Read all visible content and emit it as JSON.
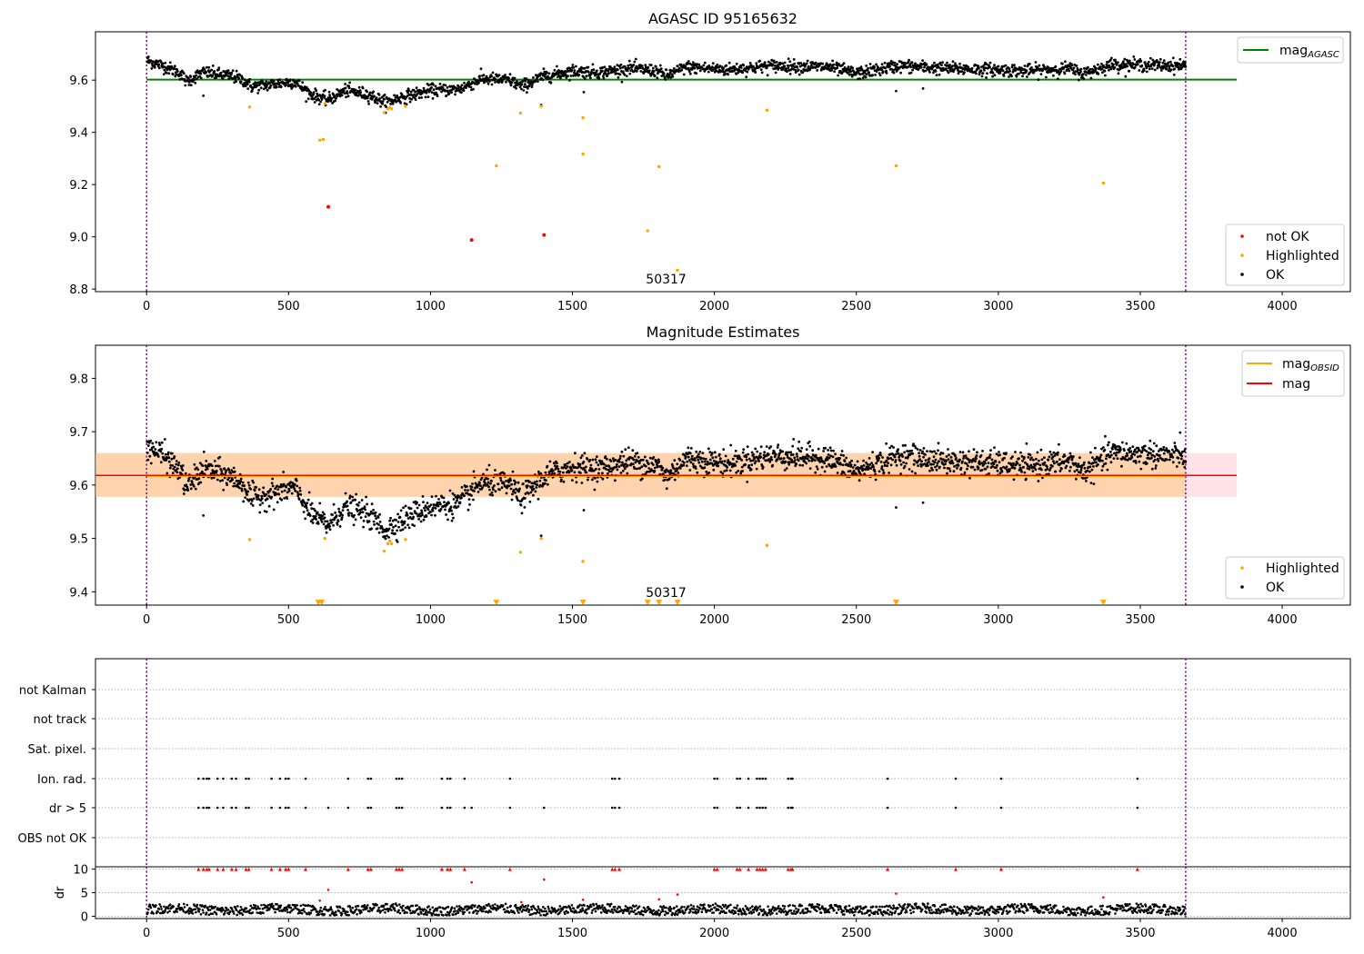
{
  "chart_data": [
    {
      "type": "scatter",
      "title": "AGASC ID 95165632",
      "xlabel": "",
      "ylabel": "",
      "xlim": [
        -180,
        4240
      ],
      "ylim": [
        8.79,
        9.785
      ],
      "xticks": [
        "0",
        "500",
        "1000",
        "1500",
        "2000",
        "2500",
        "3000",
        "3500",
        "4000"
      ],
      "yticks": [
        "8.8",
        "9.0",
        "9.2",
        "9.4",
        "9.6"
      ],
      "legend_position": "upper right and lower right",
      "vlines": [
        0,
        3660
      ],
      "hlines": [
        {
          "name": "mag_AGASC",
          "value": 9.602,
          "color": "#008000"
        }
      ],
      "legend_top": [
        {
          "label": "mag",
          "sub": "AGASC",
          "color": "#008000"
        }
      ],
      "legend_bottom": [
        {
          "label": "not OK",
          "color": "#ff0000"
        },
        {
          "label": "Highlighted",
          "color": "#ffa500"
        },
        {
          "label": "OK",
          "color": "#000000"
        }
      ],
      "annotation": {
        "text": "50317",
        "x": 1830,
        "y": 8.82
      },
      "series": [
        {
          "name": "not OK",
          "color": "#ff0000",
          "points": [
            [
              640,
              9.115
            ],
            [
              1145,
              8.988
            ],
            [
              1400,
              9.007
            ]
          ]
        },
        {
          "name": "Highlighted",
          "color": "#ffa500",
          "points": [
            [
              363,
              9.497
            ],
            [
              610,
              9.37
            ],
            [
              622,
              9.373
            ],
            [
              628,
              9.51
            ],
            [
              837,
              9.476
            ],
            [
              850,
              9.49
            ],
            [
              857,
              9.495
            ],
            [
              863,
              9.49
            ],
            [
              912,
              9.5
            ],
            [
              1232,
              9.272
            ],
            [
              1317,
              9.474
            ],
            [
              1390,
              9.5
            ],
            [
              1537,
              9.456
            ],
            [
              1537,
              9.317
            ],
            [
              1765,
              9.023
            ],
            [
              1805,
              9.269
            ],
            [
              1870,
              8.872
            ],
            [
              2185,
              9.485
            ],
            [
              2640,
              9.272
            ],
            [
              3370,
              9.206
            ]
          ]
        },
        {
          "name": "OK",
          "color": "#000000",
          "generated_from": "trend",
          "trend": [
            [
              0,
              9.675
            ],
            [
              60,
              9.655
            ],
            [
              120,
              9.625
            ],
            [
              140,
              9.595
            ],
            [
              200,
              9.63
            ],
            [
              300,
              9.615
            ],
            [
              340,
              9.6
            ],
            [
              370,
              9.575
            ],
            [
              450,
              9.585
            ],
            [
              520,
              9.595
            ],
            [
              580,
              9.545
            ],
            [
              640,
              9.525
            ],
            [
              700,
              9.56
            ],
            [
              780,
              9.545
            ],
            [
              840,
              9.515
            ],
            [
              900,
              9.535
            ],
            [
              1000,
              9.56
            ],
            [
              1100,
              9.565
            ],
            [
              1180,
              9.605
            ],
            [
              1280,
              9.6
            ],
            [
              1320,
              9.575
            ],
            [
              1400,
              9.615
            ],
            [
              1500,
              9.635
            ],
            [
              1600,
              9.63
            ],
            [
              1700,
              9.645
            ],
            [
              1800,
              9.635
            ],
            [
              1830,
              9.615
            ],
            [
              1900,
              9.65
            ],
            [
              2050,
              9.64
            ],
            [
              2200,
              9.655
            ],
            [
              2400,
              9.65
            ],
            [
              2500,
              9.625
            ],
            [
              2650,
              9.655
            ],
            [
              2800,
              9.645
            ],
            [
              3000,
              9.64
            ],
            [
              3100,
              9.635
            ],
            [
              3250,
              9.645
            ],
            [
              3300,
              9.625
            ],
            [
              3400,
              9.66
            ],
            [
              3660,
              9.655
            ]
          ],
          "outliers": [
            [
              200,
              9.54
            ],
            [
              1540,
              9.554
            ],
            [
              2640,
              9.558
            ],
            [
              2735,
              9.568
            ],
            [
              1390,
              9.505
            ]
          ]
        }
      ]
    },
    {
      "type": "scatter",
      "title": "Magnitude Estimates",
      "xlabel": "",
      "ylabel": "",
      "xlim": [
        -180,
        4240
      ],
      "ylim": [
        9.375,
        9.862
      ],
      "xticks": [
        "0",
        "500",
        "1000",
        "1500",
        "2000",
        "2500",
        "3000",
        "3500",
        "4000"
      ],
      "yticks": [
        "9.4",
        "9.5",
        "9.6",
        "9.7",
        "9.8"
      ],
      "legend_position": "upper right and lower right",
      "vlines": [
        0,
        3660
      ],
      "hlines": [
        {
          "name": "mag_OBSID",
          "value": 9.617,
          "color": "#ffa500",
          "band": [
            9.578,
            9.66
          ]
        },
        {
          "name": "mag",
          "value": 9.618,
          "color": "#ff0000",
          "band": [
            9.578,
            9.66
          ]
        }
      ],
      "legend_top": [
        {
          "label": "mag",
          "sub": "OBSID",
          "color": "#ffa500"
        },
        {
          "label": "mag",
          "sub": "",
          "color": "#ff0000"
        }
      ],
      "legend_bottom": [
        {
          "label": "Highlighted",
          "color": "#ffa500"
        },
        {
          "label": "OK",
          "color": "#000000"
        }
      ],
      "annotation": {
        "text": "50317",
        "x": 1830,
        "y": 9.385
      },
      "series": [
        {
          "name": "Highlighted",
          "color": "#ffa500",
          "points": [
            [
              363,
              9.498
            ],
            [
              628,
              9.5
            ],
            [
              837,
              9.476
            ],
            [
              850,
              9.49
            ],
            [
              857,
              9.495
            ],
            [
              863,
              9.49
            ],
            [
              912,
              9.498
            ],
            [
              1317,
              9.474
            ],
            [
              1390,
              9.5
            ],
            [
              1537,
              9.457
            ],
            [
              2185,
              9.487
            ]
          ]
        },
        {
          "name": "Highlighted (below range)",
          "color": "#ffa500",
          "marker": "triangle-down",
          "points": [
            [
              605,
              9.38
            ],
            [
              617,
              9.38
            ],
            [
              1232,
              9.38
            ],
            [
              1537,
              9.38
            ],
            [
              1765,
              9.38
            ],
            [
              1805,
              9.38
            ],
            [
              1870,
              9.38
            ],
            [
              2640,
              9.38
            ],
            [
              3370,
              9.38
            ]
          ]
        },
        {
          "name": "OK",
          "color": "#000000",
          "generated_from": "trend",
          "trend": [
            [
              0,
              9.675
            ],
            [
              60,
              9.655
            ],
            [
              120,
              9.625
            ],
            [
              140,
              9.595
            ],
            [
              200,
              9.63
            ],
            [
              300,
              9.615
            ],
            [
              340,
              9.6
            ],
            [
              370,
              9.575
            ],
            [
              450,
              9.585
            ],
            [
              520,
              9.595
            ],
            [
              580,
              9.545
            ],
            [
              640,
              9.525
            ],
            [
              700,
              9.56
            ],
            [
              780,
              9.545
            ],
            [
              840,
              9.515
            ],
            [
              900,
              9.535
            ],
            [
              1000,
              9.56
            ],
            [
              1100,
              9.565
            ],
            [
              1180,
              9.605
            ],
            [
              1280,
              9.6
            ],
            [
              1320,
              9.575
            ],
            [
              1400,
              9.615
            ],
            [
              1500,
              9.635
            ],
            [
              1600,
              9.63
            ],
            [
              1700,
              9.645
            ],
            [
              1800,
              9.635
            ],
            [
              1830,
              9.615
            ],
            [
              1900,
              9.65
            ],
            [
              2050,
              9.64
            ],
            [
              2200,
              9.655
            ],
            [
              2400,
              9.65
            ],
            [
              2500,
              9.625
            ],
            [
              2650,
              9.655
            ],
            [
              2800,
              9.645
            ],
            [
              3000,
              9.64
            ],
            [
              3100,
              9.635
            ],
            [
              3250,
              9.645
            ],
            [
              3300,
              9.625
            ],
            [
              3400,
              9.66
            ],
            [
              3660,
              9.655
            ]
          ],
          "outliers": [
            [
              200,
              9.543
            ],
            [
              1540,
              9.553
            ],
            [
              2640,
              9.558
            ],
            [
              2735,
              9.567
            ],
            [
              1390,
              9.505
            ]
          ]
        }
      ]
    },
    {
      "type": "scatter",
      "title": "",
      "xlabel": "",
      "ylabel": "",
      "xlim": [
        -180,
        4240
      ],
      "categories": [
        "not Kalman",
        "not track",
        "Sat. pixel.",
        "Ion. rad.",
        "dr > 5",
        "OBS not OK"
      ],
      "vlines": [
        0,
        3660
      ],
      "flag_rows": {
        "Ion. rad.": [
          183,
          200,
          212,
          220,
          250,
          270,
          300,
          315,
          350,
          360,
          440,
          470,
          490,
          500,
          560,
          710,
          780,
          790,
          880,
          890,
          900,
          1040,
          1060,
          1070,
          1120,
          1280,
          1640,
          1650,
          1665,
          2000,
          2010,
          2080,
          2090,
          2120,
          2150,
          2160,
          2170,
          2180,
          2260,
          2270,
          2275,
          2610,
          2850,
          3010,
          3490
        ],
        "dr > 5": [
          183,
          200,
          212,
          220,
          250,
          270,
          300,
          315,
          350,
          360,
          440,
          470,
          490,
          500,
          560,
          640,
          710,
          780,
          790,
          880,
          890,
          900,
          1040,
          1060,
          1070,
          1120,
          1145,
          1280,
          1400,
          1640,
          1650,
          1665,
          2000,
          2010,
          2080,
          2090,
          2120,
          2150,
          2160,
          2170,
          2180,
          2260,
          2270,
          2275,
          2610,
          2850,
          3010,
          3490
        ]
      }
    },
    {
      "type": "scatter",
      "title": "",
      "xlabel": "",
      "ylabel": "dr",
      "xlim": [
        -180,
        4240
      ],
      "ylim": [
        -0.5,
        10.5
      ],
      "xticks": [
        "0",
        "500",
        "1000",
        "1500",
        "2000",
        "2500",
        "3000",
        "3500",
        "4000"
      ],
      "yticks": [
        "0",
        "5",
        "10"
      ],
      "vlines": [
        0,
        3660
      ],
      "series": [
        {
          "name": "dr OK",
          "color": "#000000",
          "generated_from": "noise",
          "range": [
            0.4,
            2.4
          ]
        },
        {
          "name": "dr capped (>10)",
          "color": "#ff0000",
          "marker": "triangle-up",
          "x": [
            183,
            200,
            212,
            220,
            250,
            270,
            300,
            315,
            350,
            360,
            440,
            470,
            490,
            500,
            560,
            710,
            780,
            790,
            880,
            890,
            900,
            1040,
            1060,
            1070,
            1120,
            1280,
            1640,
            1650,
            1665,
            2000,
            2010,
            2080,
            2090,
            2120,
            2150,
            2160,
            2170,
            2180,
            2260,
            2270,
            2275,
            2610,
            2850,
            3010,
            3490
          ],
          "value": 10
        },
        {
          "name": "dr not OK",
          "color": "#ff0000",
          "points": [
            [
              610,
              3.3
            ],
            [
              640,
              5.6
            ],
            [
              1145,
              7.2
            ],
            [
              1320,
              3.0
            ],
            [
              1400,
              7.8
            ],
            [
              1537,
              3.5
            ],
            [
              1805,
              3.6
            ],
            [
              1870,
              4.6
            ],
            [
              2640,
              4.8
            ],
            [
              3370,
              4.0
            ]
          ]
        }
      ]
    }
  ]
}
